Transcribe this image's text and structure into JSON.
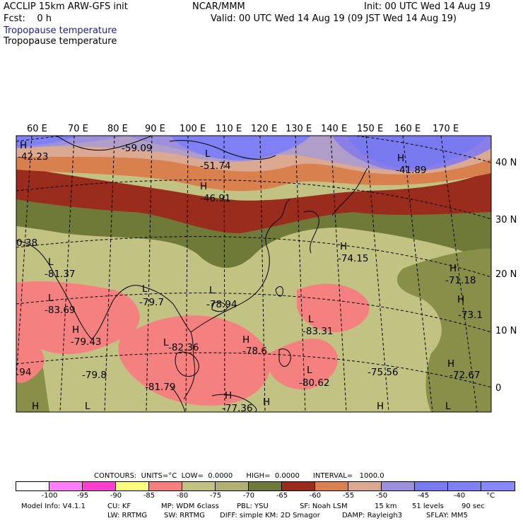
{
  "header": {
    "model_title": "ACCLIP 15km ARW-GFS init",
    "org": "NCAR/MMM",
    "init": "Init: 00 UTC Wed 14 Aug 19",
    "fcst": "Fcst:    0 h",
    "valid": "Valid: 00 UTC Wed 14 Aug 19 (09 JST Wed 14 Aug 19)",
    "field_title_1": "Tropopause temperature",
    "field_title_2": "Tropopause temperature"
  },
  "map": {
    "lon_labels": [
      "60 E",
      "70 E",
      "80 E",
      "90 E",
      "100 E",
      "110 E",
      "120 E",
      "130 E",
      "140 E",
      "150 E",
      "160 E",
      "170 E"
    ],
    "lat_labels": [
      "40 N",
      "30 N",
      "20 N",
      "10 N",
      "0"
    ],
    "labels": [
      {
        "t": "H"
      },
      {
        "t": "-42.23"
      },
      {
        "t": "-59.09"
      },
      {
        "t": "L"
      },
      {
        "t": "-51.74"
      },
      {
        "t": "H"
      },
      {
        "t": "-46.91"
      },
      {
        "t": "H"
      },
      {
        "t": "-41.89"
      },
      {
        "t": "0.38"
      },
      {
        "t": "L"
      },
      {
        "t": "-81.37"
      },
      {
        "t": "H"
      },
      {
        "t": "-74.15"
      },
      {
        "t": "H"
      },
      {
        "t": "-71.18"
      },
      {
        "t": "L"
      },
      {
        "t": "-83.69"
      },
      {
        "t": "L"
      },
      {
        "t": "-79.7"
      },
      {
        "t": "L"
      },
      {
        "t": "-78.94"
      },
      {
        "t": "H"
      },
      {
        "t": "-73.1"
      },
      {
        "t": "L"
      },
      {
        "t": "-83.31"
      },
      {
        "t": "H"
      },
      {
        "t": "-79.43"
      },
      {
        "t": "L"
      },
      {
        "t": "-82.36"
      },
      {
        "t": "H"
      },
      {
        "t": "-78.6"
      },
      {
        "t": "H"
      },
      {
        "t": "-72.67"
      },
      {
        "t": ".94"
      },
      {
        "t": "-79.8"
      },
      {
        "t": "-75.56"
      },
      {
        "t": "-81.79"
      },
      {
        "t": "L"
      },
      {
        "t": "-80.62"
      },
      {
        "t": "H"
      },
      {
        "t": "-77.36"
      },
      {
        "t": "H"
      },
      {
        "t": "L"
      },
      {
        "t": "H"
      },
      {
        "t": "L"
      },
      {
        "t": "H"
      }
    ]
  },
  "legend": {
    "contours": "CONTOURS:  UNITS=°C  LOW=  0.0000      HIGH=  0.0000      INTERVAL=   1000.0",
    "colors": [
      "#ffffff",
      "#ff80ff",
      "#ff40d0",
      "#ffff80",
      "#f58080",
      "#c2c283",
      "#b0b070",
      "#707a38",
      "#9a2c1e",
      "#d9804f",
      "#dba891",
      "#9c8fdc",
      "#7a7af0",
      "#8080f5",
      "#8888ff"
    ],
    "labels": [
      "-100",
      "-95",
      "-90",
      "-85",
      "-80",
      "-75",
      "-70",
      "-65",
      "-60",
      "-55",
      "-50",
      "-45",
      "-40"
    ],
    "unit": "°C"
  },
  "footer": {
    "line1_a": "Model Info: V4.1.1",
    "line1_b": "CU: KF",
    "line1_c": "MP: WDM 6class",
    "line1_d": "PBL: YSU",
    "line1_e": "SF: Noah LSM",
    "line1_f": "15 km",
    "line1_g": "51 levels",
    "line1_h": "90 sec",
    "line2_a": "LW: RRTMG",
    "line2_b": "SW: RRTMG",
    "line2_c": "DIFF: simple KM: 2D Smagor",
    "line2_d": "DAMP: Rayleigh3",
    "line2_e": "SFLAY: MM5"
  }
}
